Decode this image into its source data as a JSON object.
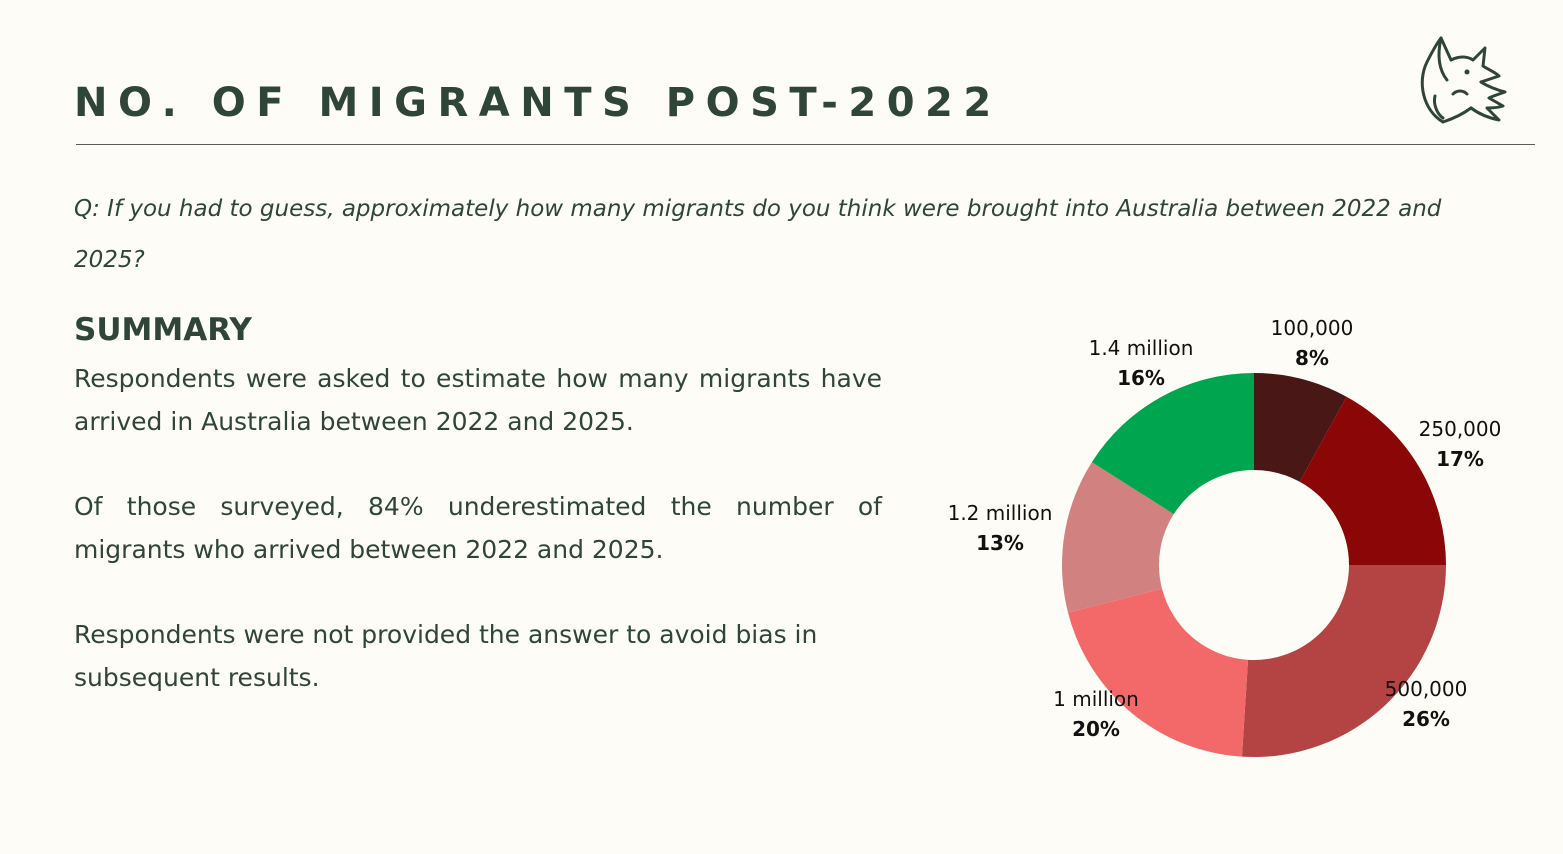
{
  "page": {
    "title": "NO. OF MIGRANTS POST-2022",
    "question": "Q: If you had to guess, approximately how many migrants do you think were brought into Australia between 2022 and 2025?",
    "logo_icon": "fox-icon"
  },
  "summary": {
    "heading": "SUMMARY",
    "paragraphs": [
      "Respondents were asked to estimate how many migrants have arrived in Australia between 2022 and 2025.",
      "Of those surveyed, 84% underestimated the number of migrants who arrived between 2022 and 2025.",
      "Respondents were not provided the answer to avoid bias in subsequent results."
    ]
  },
  "chart_data": {
    "type": "pie",
    "donut": true,
    "categories": [
      "100,000",
      "250,000",
      "500,000",
      "1 million",
      "1.2 million",
      "1.4 million"
    ],
    "values": [
      8,
      17,
      26,
      20,
      13,
      16
    ],
    "labels": [
      "8%",
      "17%",
      "26%",
      "20%",
      "13%",
      "16%"
    ],
    "colors": [
      "#4a1717",
      "#8b0606",
      "#b44444",
      "#f36969",
      "#d28181",
      "#00a54f"
    ],
    "legend": "none"
  }
}
